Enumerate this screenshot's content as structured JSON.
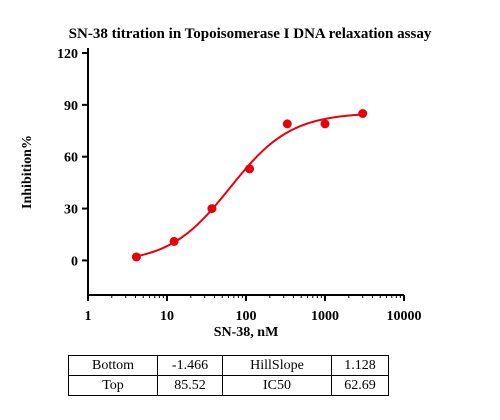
{
  "chart_data": {
    "type": "scatter",
    "title": "SN-38 titration in Topoisomerase I DNA relaxation assay",
    "xlabel": "SN-38, nM",
    "ylabel": "Inhibition%",
    "xscale": "log",
    "xlim": [
      1,
      10000
    ],
    "ylim": [
      -20,
      120
    ],
    "x_ticks": [
      1,
      10,
      100,
      1000,
      10000
    ],
    "x_tick_labels": [
      "1",
      "10",
      "100",
      "1000",
      "10000"
    ],
    "y_ticks": [
      0,
      30,
      60,
      90,
      120
    ],
    "y_tick_labels": [
      "0",
      "30",
      "60",
      "90",
      "120"
    ],
    "marker_color": "#e8000b",
    "series": [
      {
        "x": [
          4.1,
          12.3,
          37,
          111,
          333,
          1000,
          3000
        ],
        "y": [
          2,
          11,
          30,
          53,
          79,
          79,
          85
        ]
      }
    ],
    "fit": {
      "model": "4PL",
      "bottom": -1.466,
      "top": 85.52,
      "hillslope": 1.128,
      "ic50": 62.69,
      "color": "#e8000b"
    }
  },
  "params_table": {
    "rows": [
      [
        "Bottom",
        "-1.466",
        "HillSlope",
        "1.128"
      ],
      [
        "Top",
        "85.52",
        "IC50",
        "62.69"
      ]
    ]
  }
}
